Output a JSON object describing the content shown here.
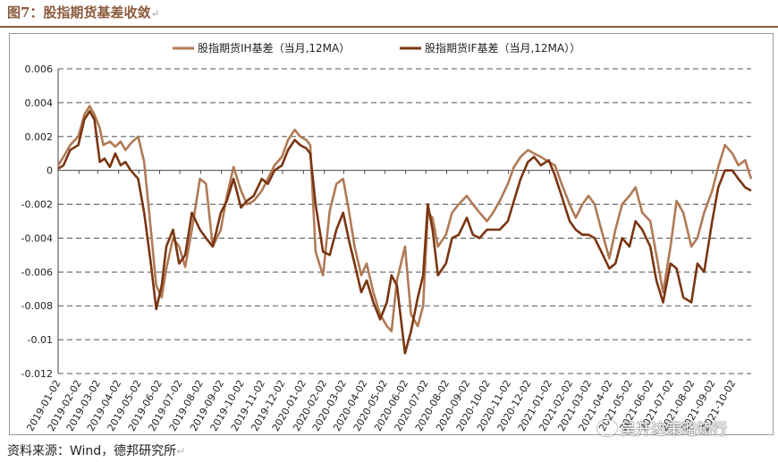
{
  "figure": {
    "title": "图7：股指期货基差收敛",
    "source": "资料来源：Wind，德邦研究所",
    "watermark": "吴开达策略知行"
  },
  "chart_data": {
    "type": "line",
    "legend_position": "top-center",
    "grid": true,
    "ylim": [
      -0.012,
      0.006
    ],
    "yticks": [
      0.006,
      0.004,
      0.002,
      0,
      -0.002,
      -0.004,
      -0.006,
      -0.008,
      -0.01,
      -0.012
    ],
    "ytick_labels": [
      "0.006",
      "0.004",
      "0.002",
      "0",
      "-0.002",
      "-0.004",
      "-0.006",
      "-0.008",
      "-0.01",
      "-0.012"
    ],
    "x_start": "2019-01-02",
    "x_end": "2021-10-29",
    "xtick_labels": [
      "2019-01-02",
      "2019-02-02",
      "2019-03-02",
      "2019-04-02",
      "2019-05-02",
      "2019-06-02",
      "2019-07-02",
      "2019-08-02",
      "2019-09-02",
      "2019-10-02",
      "2019-11-02",
      "2019-12-02",
      "2020-01-02",
      "2020-02-02",
      "2020-03-02",
      "2020-04-02",
      "2020-05-02",
      "2020-06-02",
      "2020-07-02",
      "2020-08-02",
      "2020-09-02",
      "2020-10-02",
      "2020-11-02",
      "2020-12-02",
      "2021-01-02",
      "2021-02-02",
      "2021-03-02",
      "2021-04-02",
      "2021-05-02",
      "2021-06-02",
      "2021-07-02",
      "2021-08-02",
      "2021-09-02",
      "2021-10-02"
    ],
    "series": [
      {
        "name": "股指期货IH基差（当月,12MA）",
        "color": "#b07a55",
        "x": [
          "2019-01-02",
          "2019-01-10",
          "2019-01-20",
          "2019-02-01",
          "2019-02-10",
          "2019-02-18",
          "2019-02-25",
          "2019-03-05",
          "2019-03-10",
          "2019-03-20",
          "2019-03-28",
          "2019-04-05",
          "2019-04-12",
          "2019-04-20",
          "2019-05-01",
          "2019-05-10",
          "2019-05-20",
          "2019-05-28",
          "2019-06-05",
          "2019-06-12",
          "2019-06-22",
          "2019-07-01",
          "2019-07-10",
          "2019-07-20",
          "2019-08-01",
          "2019-08-10",
          "2019-08-20",
          "2019-09-01",
          "2019-09-10",
          "2019-09-20",
          "2019-10-01",
          "2019-10-10",
          "2019-10-20",
          "2019-11-01",
          "2019-11-10",
          "2019-11-20",
          "2019-12-01",
          "2019-12-10",
          "2019-12-20",
          "2019-12-28",
          "2020-01-06",
          "2020-01-12",
          "2020-01-20",
          "2020-01-31",
          "2020-02-10",
          "2020-02-20",
          "2020-03-01",
          "2020-03-10",
          "2020-03-18",
          "2020-03-28",
          "2020-04-05",
          "2020-04-15",
          "2020-04-25",
          "2020-05-05",
          "2020-05-12",
          "2020-05-20",
          "2020-06-01",
          "2020-06-10",
          "2020-06-20",
          "2020-06-28",
          "2020-07-05",
          "2020-07-12",
          "2020-07-20",
          "2020-08-01",
          "2020-08-10",
          "2020-08-20",
          "2020-09-01",
          "2020-09-10",
          "2020-09-20",
          "2020-10-01",
          "2020-10-10",
          "2020-10-20",
          "2020-11-01",
          "2020-11-10",
          "2020-11-20",
          "2020-12-01",
          "2020-12-10",
          "2020-12-20",
          "2021-01-01",
          "2021-01-10",
          "2021-01-20",
          "2021-02-01",
          "2021-02-10",
          "2021-02-20",
          "2021-03-01",
          "2021-03-10",
          "2021-03-20",
          "2021-04-01",
          "2021-04-10",
          "2021-04-20",
          "2021-05-01",
          "2021-05-10",
          "2021-05-20",
          "2021-06-01",
          "2021-06-10",
          "2021-06-20",
          "2021-07-01",
          "2021-07-10",
          "2021-07-20",
          "2021-08-01",
          "2021-08-10",
          "2021-08-20",
          "2021-09-01",
          "2021-09-10",
          "2021-09-20",
          "2021-10-01",
          "2021-10-10",
          "2021-10-20",
          "2021-10-29"
        ],
        "values": [
          0.0003,
          0.0008,
          0.0015,
          0.002,
          0.0033,
          0.0038,
          0.0033,
          0.0025,
          0.0015,
          0.0017,
          0.0014,
          0.0017,
          0.0012,
          0.0016,
          0.002,
          0.0005,
          -0.0035,
          -0.0068,
          -0.0075,
          -0.0058,
          -0.004,
          -0.0045,
          -0.0057,
          -0.0035,
          -0.0005,
          -0.0008,
          -0.0045,
          -0.0035,
          -0.0015,
          0.0002,
          -0.0012,
          -0.002,
          -0.0018,
          -0.0012,
          -0.0005,
          0.0003,
          0.0008,
          0.0018,
          0.0024,
          0.002,
          0.0018,
          0.0015,
          -0.0048,
          -0.0062,
          -0.0024,
          -0.0008,
          -0.0005,
          -0.0025,
          -0.0045,
          -0.0062,
          -0.0055,
          -0.0072,
          -0.0085,
          -0.0092,
          -0.0095,
          -0.0065,
          -0.0045,
          -0.0085,
          -0.0092,
          -0.008,
          -0.0025,
          -0.0028,
          -0.0045,
          -0.0038,
          -0.0025,
          -0.002,
          -0.0015,
          -0.002,
          -0.0025,
          -0.003,
          -0.0025,
          -0.0018,
          -0.0008,
          0.0002,
          0.0008,
          0.0012,
          0.001,
          0.0008,
          0.0005,
          0.0003,
          -0.0008,
          -0.002,
          -0.0028,
          -0.002,
          -0.0015,
          -0.002,
          -0.0035,
          -0.0052,
          -0.0035,
          -0.002,
          -0.0015,
          -0.001,
          -0.0025,
          -0.003,
          -0.005,
          -0.0072,
          -0.0045,
          -0.0018,
          -0.0025,
          -0.0045,
          -0.004,
          -0.0025,
          -0.0012,
          0.0002,
          0.0015,
          0.001,
          0.0003,
          0.0006,
          -0.0005
        ]
      },
      {
        "name": "股指期货IF基差（当月,12MA））",
        "color": "#7a3511",
        "x": [
          "2019-01-02",
          "2019-01-10",
          "2019-01-20",
          "2019-02-01",
          "2019-02-10",
          "2019-02-18",
          "2019-02-25",
          "2019-03-05",
          "2019-03-12",
          "2019-03-20",
          "2019-03-28",
          "2019-04-05",
          "2019-04-12",
          "2019-04-20",
          "2019-05-01",
          "2019-05-10",
          "2019-05-20",
          "2019-05-28",
          "2019-06-05",
          "2019-06-12",
          "2019-06-22",
          "2019-07-01",
          "2019-07-10",
          "2019-07-20",
          "2019-08-01",
          "2019-08-10",
          "2019-08-20",
          "2019-09-01",
          "2019-09-10",
          "2019-09-20",
          "2019-10-01",
          "2019-10-10",
          "2019-10-20",
          "2019-11-01",
          "2019-11-10",
          "2019-11-20",
          "2019-12-01",
          "2019-12-10",
          "2019-12-20",
          "2019-12-28",
          "2020-01-06",
          "2020-01-12",
          "2020-01-20",
          "2020-01-31",
          "2020-02-10",
          "2020-02-20",
          "2020-03-01",
          "2020-03-10",
          "2020-03-18",
          "2020-03-28",
          "2020-04-05",
          "2020-04-15",
          "2020-04-25",
          "2020-05-05",
          "2020-05-12",
          "2020-05-20",
          "2020-06-01",
          "2020-06-10",
          "2020-06-20",
          "2020-06-28",
          "2020-07-05",
          "2020-07-12",
          "2020-07-20",
          "2020-08-01",
          "2020-08-10",
          "2020-08-20",
          "2020-09-01",
          "2020-09-10",
          "2020-09-20",
          "2020-10-01",
          "2020-10-10",
          "2020-10-20",
          "2020-11-01",
          "2020-11-10",
          "2020-11-20",
          "2020-12-01",
          "2020-12-10",
          "2020-12-20",
          "2021-01-01",
          "2021-01-10",
          "2021-01-20",
          "2021-02-01",
          "2021-02-10",
          "2021-02-20",
          "2021-03-01",
          "2021-03-10",
          "2021-03-20",
          "2021-04-01",
          "2021-04-10",
          "2021-04-20",
          "2021-05-01",
          "2021-05-10",
          "2021-05-20",
          "2021-06-01",
          "2021-06-10",
          "2021-06-20",
          "2021-07-01",
          "2021-07-10",
          "2021-07-20",
          "2021-08-01",
          "2021-08-10",
          "2021-08-20",
          "2021-09-01",
          "2021-09-10",
          "2021-09-20",
          "2021-10-01",
          "2021-10-10",
          "2021-10-20",
          "2021-10-29"
        ],
        "values": [
          0.0001,
          0.0003,
          0.0012,
          0.0015,
          0.003,
          0.0035,
          0.003,
          0.0005,
          0.0007,
          0.0002,
          0.001,
          0.0003,
          0.0005,
          0.0,
          -0.0005,
          -0.0025,
          -0.0055,
          -0.0082,
          -0.0068,
          -0.0045,
          -0.0035,
          -0.0055,
          -0.005,
          -0.0025,
          -0.0035,
          -0.004,
          -0.0045,
          -0.0025,
          -0.0018,
          -0.0005,
          -0.0022,
          -0.0018,
          -0.0015,
          -0.0005,
          -0.0008,
          0.0,
          0.0003,
          0.0012,
          0.0018,
          0.0015,
          0.0013,
          0.001,
          -0.002,
          -0.0048,
          -0.005,
          -0.0035,
          -0.0025,
          -0.0042,
          -0.0055,
          -0.0072,
          -0.0065,
          -0.0078,
          -0.0088,
          -0.0078,
          -0.0062,
          -0.0068,
          -0.0108,
          -0.0095,
          -0.0075,
          -0.0062,
          -0.002,
          -0.0035,
          -0.0062,
          -0.0055,
          -0.004,
          -0.0038,
          -0.0028,
          -0.0038,
          -0.004,
          -0.0035,
          -0.0035,
          -0.0035,
          -0.003,
          -0.0018,
          -0.0005,
          0.0005,
          0.0008,
          0.0003,
          0.0006,
          -0.0003,
          -0.0015,
          -0.003,
          -0.0035,
          -0.0038,
          -0.0038,
          -0.004,
          -0.0048,
          -0.0058,
          -0.0055,
          -0.004,
          -0.0045,
          -0.003,
          -0.0035,
          -0.0045,
          -0.0065,
          -0.0078,
          -0.0055,
          -0.0058,
          -0.0075,
          -0.0078,
          -0.0055,
          -0.006,
          -0.003,
          -0.001,
          0.0,
          0.0,
          -0.0005,
          -0.001,
          -0.0012
        ]
      }
    ]
  }
}
